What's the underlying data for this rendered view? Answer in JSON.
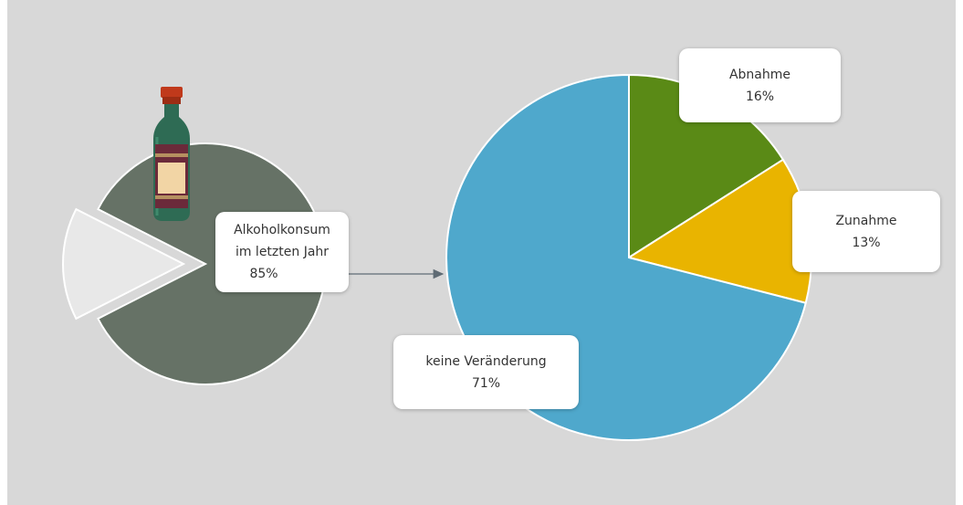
{
  "chart_data": [
    {
      "type": "pie",
      "name_ref": "alcohol-consumption",
      "slices": [
        {
          "label": "Alkoholkonsum im letzten Jahr",
          "value": 85,
          "color": "#667266"
        },
        {
          "label": "",
          "value": 15,
          "color": "#e8e8e8",
          "exploded": true
        }
      ],
      "callout": {
        "line1": "Alkoholkonsum",
        "line2": "im letzten Jahr",
        "value_text": "85%"
      }
    },
    {
      "type": "pie",
      "name_ref": "change-breakdown",
      "slices": [
        {
          "label": "Abnahme",
          "value": 16,
          "value_text": "16%",
          "color": "#5a8a16"
        },
        {
          "label": "Zunahme",
          "value": 13,
          "value_text": "13%",
          "color": "#e9b400"
        },
        {
          "label": "keine Veränderung",
          "value": 71,
          "value_text": "71%",
          "color": "#4fa8cc"
        }
      ]
    }
  ],
  "decor": {
    "bottle_icon": "wine-bottle-icon",
    "arrow_color": "#5f6b74"
  }
}
